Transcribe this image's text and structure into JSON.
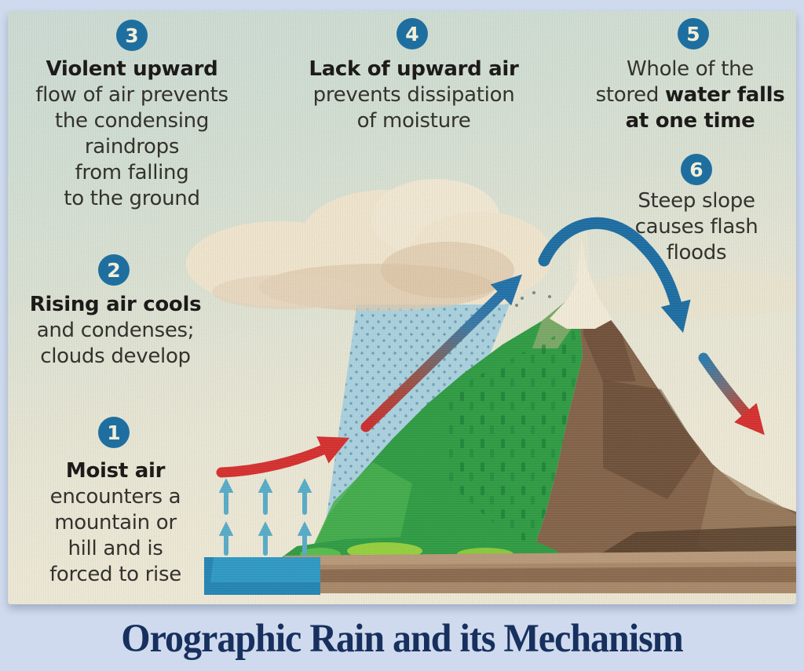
{
  "title": "Orographic Rain and its Mechanism",
  "annotations": [
    {
      "number": "3",
      "lines": [
        [
          {
            "t": "Violent upward",
            "b": 1
          }
        ],
        [
          {
            "t": "flow of air prevents"
          }
        ],
        [
          {
            "t": "the condensing"
          }
        ],
        [
          {
            "t": "raindrops"
          }
        ],
        [
          {
            "t": "from falling"
          }
        ],
        [
          {
            "t": "to the ground"
          }
        ]
      ]
    },
    {
      "number": "4",
      "lines": [
        [
          {
            "t": "Lack of upward air",
            "b": 1
          }
        ],
        [
          {
            "t": "prevents dissipation"
          }
        ],
        [
          {
            "t": "of moisture"
          }
        ]
      ]
    },
    {
      "number": "5",
      "lines": [
        [
          {
            "t": "Whole of the"
          }
        ],
        [
          {
            "t": "stored "
          },
          {
            "t": "water falls",
            "b": 1
          }
        ],
        [
          {
            "t": "at one time",
            "b": 1
          }
        ]
      ]
    },
    {
      "number": "6",
      "lines": [
        [
          {
            "t": "Steep slope"
          }
        ],
        [
          {
            "t": "causes flash"
          }
        ],
        [
          {
            "t": "floods"
          }
        ]
      ]
    },
    {
      "number": "2",
      "lines": [
        [
          {
            "t": "Rising air cools",
            "b": 1
          }
        ],
        [
          {
            "t": "and condenses;"
          }
        ],
        [
          {
            "t": "clouds develop"
          }
        ]
      ]
    },
    {
      "number": "1",
      "lines": [
        [
          {
            "t": "Moist air",
            "b": 1
          }
        ],
        [
          {
            "t": "encounters a"
          }
        ],
        [
          {
            "t": "mountain or"
          }
        ],
        [
          {
            "t": "hill and is"
          }
        ],
        [
          {
            "t": "forced to rise"
          }
        ]
      ]
    }
  ],
  "colors": {
    "frame_bg": "#cfdaee",
    "badge": "#1e6f9f",
    "badge_num": "#f3eed8",
    "text": "#34322e",
    "text_bold": "#1d1b19",
    "title": "#17305e",
    "arrow_red": "#d8302f",
    "arrow_blue": "#2173ad",
    "rain_blue": "#a6d3e4",
    "water_blue": "#2f9cc9",
    "mountain_green": "#2f9e44",
    "mountain_brown": "#85644a",
    "cloud_cream": "#f3e9d2"
  },
  "figure_elements": [
    "cloud",
    "rain-shaft",
    "ascent-arrow",
    "crest-arc-arrow",
    "descent-arrow",
    "moist-air-arrow",
    "evaporation-arrows",
    "mountain-green-face",
    "mountain-brown-face",
    "snow-cap",
    "water-body",
    "grass-strip",
    "soil-layer"
  ]
}
